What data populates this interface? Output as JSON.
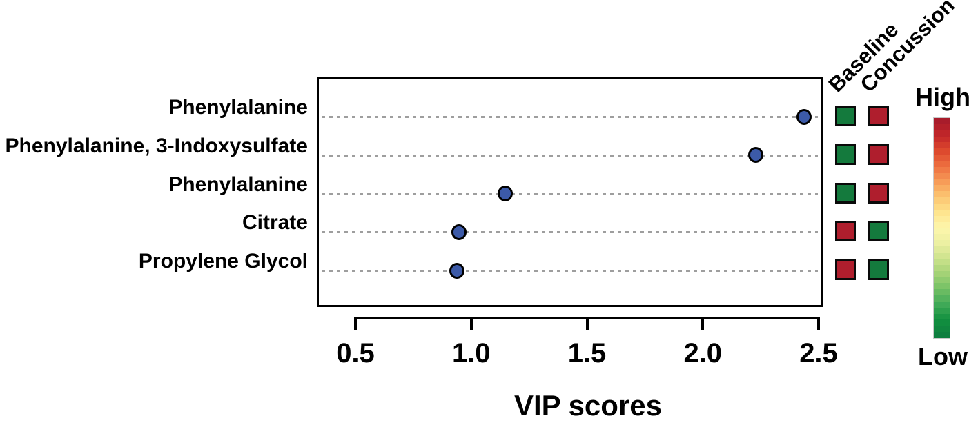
{
  "chart_data": {
    "type": "scatter",
    "title": "",
    "xlabel": "VIP scores",
    "x_ticks": [
      "0.5",
      "1.0",
      "1.5",
      "2.0",
      "2.5"
    ],
    "x_tick_values": [
      0.5,
      1.0,
      1.5,
      2.0,
      2.5
    ],
    "xlim": [
      0.33,
      2.52
    ],
    "grid": "dotted-horizontal",
    "legend_position": "right",
    "rows": [
      {
        "label": "Phenylalanine",
        "vip": 2.43,
        "baseline": "Low",
        "concussion": "High"
      },
      {
        "label": "Phenylalanine, 3-Indoxysulfate",
        "vip": 2.22,
        "baseline": "Low",
        "concussion": "High"
      },
      {
        "label": "Phenylalanine",
        "vip": 1.14,
        "baseline": "Low",
        "concussion": "High"
      },
      {
        "label": "Citrate",
        "vip": 0.94,
        "baseline": "High",
        "concussion": "Low"
      },
      {
        "label": "Propylene Glycol",
        "vip": 0.93,
        "baseline": "High",
        "concussion": "Low"
      }
    ],
    "heatmap_columns": [
      "Baseline",
      "Concussion"
    ],
    "colorbar": {
      "high_label": "High",
      "low_label": "Low",
      "stops": [
        "#A81C2B",
        "#C32729",
        "#DD4A2E",
        "#EE7241",
        "#F79C58",
        "#FCC672",
        "#FEE58F",
        "#FDF6AC",
        "#ECF0A2",
        "#CBE28B",
        "#A3D276",
        "#74C065",
        "#3FA957",
        "#12903F",
        "#0E7F3F"
      ]
    },
    "colors": {
      "dot_fill": "#3C5AA8",
      "dot_stroke": "#000000",
      "level_high": "#AF1E2D",
      "level_low": "#147A3D",
      "gridline": "#9E9E9E"
    }
  }
}
